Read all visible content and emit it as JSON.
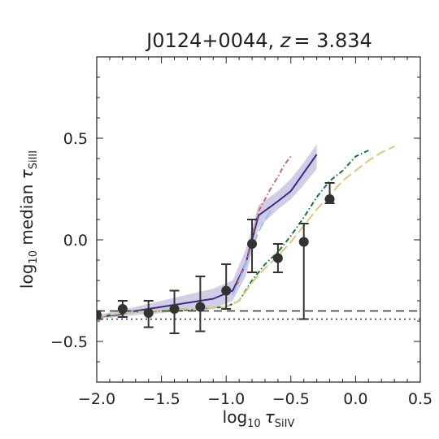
{
  "chart_data": {
    "type": "line",
    "title": {
      "object": "J0124+0044",
      "separator": ", ",
      "z_symbol": "z",
      "z_value": "= 3.834"
    },
    "xlabel": {
      "log": "log",
      "sub": "10",
      "tau": "τ",
      "ion": "SiIV"
    },
    "ylabel": {
      "log": "log",
      "sub": "10",
      "median": " median ",
      "tau": "τ",
      "ion": "SiIII"
    },
    "xlim": [
      -2.0,
      0.5
    ],
    "ylim": [
      -0.7,
      0.9
    ],
    "xticks": [
      -2.0,
      -1.5,
      -1.0,
      -0.5,
      0.0,
      0.5
    ],
    "xtick_labels": [
      "−2.0",
      "−1.5",
      "−1.0",
      "−0.5",
      "0.0",
      "0.5"
    ],
    "yticks": [
      -0.5,
      0.0,
      0.5
    ],
    "ytick_labels": [
      "−0.5",
      "0.0",
      "0.5"
    ],
    "points": {
      "color": "#333333",
      "values": [
        {
          "x": -2.0,
          "y": -0.37,
          "lo": -0.39,
          "hi": -0.35
        },
        {
          "x": -1.8,
          "y": -0.34,
          "lo": -0.38,
          "hi": -0.3
        },
        {
          "x": -1.6,
          "y": -0.36,
          "lo": -0.43,
          "hi": -0.3
        },
        {
          "x": -1.4,
          "y": -0.34,
          "lo": -0.46,
          "hi": -0.25
        },
        {
          "x": -1.2,
          "y": -0.33,
          "lo": -0.45,
          "hi": -0.18
        },
        {
          "x": -1.0,
          "y": -0.25,
          "lo": -0.34,
          "hi": -0.12
        },
        {
          "x": -0.8,
          "y": -0.02,
          "lo": -0.16,
          "hi": 0.1
        },
        {
          "x": -0.6,
          "y": -0.09,
          "lo": -0.16,
          "hi": -0.02
        },
        {
          "x": -0.4,
          "y": -0.01,
          "lo": -0.39,
          "hi": 0.08
        },
        {
          "x": -0.2,
          "y": 0.2,
          "lo": 0.18,
          "hi": 0.28
        }
      ]
    },
    "series": [
      {
        "color": "#3b2a85",
        "dash": "solid",
        "width": 2,
        "x": [
          -2.0,
          -1.85,
          -1.7,
          -1.5,
          -1.3,
          -1.1,
          -0.95,
          -0.85,
          -0.75,
          -0.6,
          -0.5,
          -0.4,
          -0.3
        ],
        "y": [
          -0.38,
          -0.37,
          -0.35,
          -0.33,
          -0.31,
          -0.29,
          -0.25,
          -0.12,
          0.12,
          0.19,
          0.24,
          0.33,
          0.42
        ]
      },
      {
        "color": "#cc6677",
        "dash": "dashdot",
        "width": 2,
        "x": [
          -0.95,
          -0.85,
          -0.8,
          -0.75,
          -0.7,
          -0.65,
          -0.6,
          -0.55,
          -0.5
        ],
        "y": [
          -0.27,
          -0.12,
          0.02,
          0.14,
          0.2,
          0.26,
          0.31,
          0.37,
          0.41
        ]
      },
      {
        "color": "#99c2ea",
        "dash": "longdash",
        "width": 2,
        "x": [
          -0.95,
          -0.9,
          -0.85,
          -0.8,
          -0.75,
          -0.7,
          -0.65
        ],
        "y": [
          -0.27,
          -0.2,
          -0.12,
          -0.04,
          0.04,
          0.1,
          0.15
        ]
      },
      {
        "color": "#117733",
        "dash": "dashdot",
        "width": 2,
        "x": [
          -2.0,
          -1.8,
          -1.6,
          -1.4,
          -1.2,
          -1.0,
          -0.9,
          -0.8,
          -0.7,
          -0.6,
          -0.5,
          -0.4,
          -0.3,
          -0.2,
          -0.1,
          0.0,
          0.1
        ],
        "y": [
          -0.38,
          -0.36,
          -0.35,
          -0.35,
          -0.34,
          -0.33,
          -0.3,
          -0.2,
          -0.12,
          -0.06,
          0.02,
          0.11,
          0.21,
          0.29,
          0.34,
          0.41,
          0.44
        ]
      },
      {
        "color": "#ddc77a",
        "dash": "longdash",
        "width": 2,
        "x": [
          -2.0,
          -1.8,
          -1.6,
          -1.4,
          -1.2,
          -1.0,
          -0.9,
          -0.8,
          -0.7,
          -0.6,
          -0.5,
          -0.4,
          -0.3,
          -0.2,
          -0.1,
          0.0,
          0.1,
          0.2,
          0.3
        ],
        "y": [
          -0.38,
          -0.36,
          -0.35,
          -0.34,
          -0.34,
          -0.33,
          -0.3,
          -0.21,
          -0.14,
          -0.08,
          -0.01,
          0.07,
          0.15,
          0.22,
          0.29,
          0.34,
          0.39,
          0.43,
          0.46
        ]
      }
    ],
    "band": {
      "color": "#b3acd6",
      "x": [
        -2.0,
        -1.85,
        -1.7,
        -1.5,
        -1.3,
        -1.1,
        -0.95,
        -0.85,
        -0.75,
        -0.6,
        -0.5,
        -0.4,
        -0.3
      ],
      "lo": [
        -0.39,
        -0.38,
        -0.37,
        -0.36,
        -0.35,
        -0.34,
        -0.3,
        -0.18,
        0.06,
        0.15,
        0.2,
        0.27,
        0.35
      ],
      "hi": [
        -0.37,
        -0.35,
        -0.33,
        -0.3,
        -0.27,
        -0.24,
        -0.2,
        -0.05,
        0.17,
        0.24,
        0.3,
        0.38,
        0.47
      ]
    },
    "hlines": [
      {
        "y": -0.35,
        "dash": "dashed",
        "color": "#333333"
      },
      {
        "y": -0.39,
        "dash": "dotted",
        "color": "#333333"
      }
    ]
  }
}
